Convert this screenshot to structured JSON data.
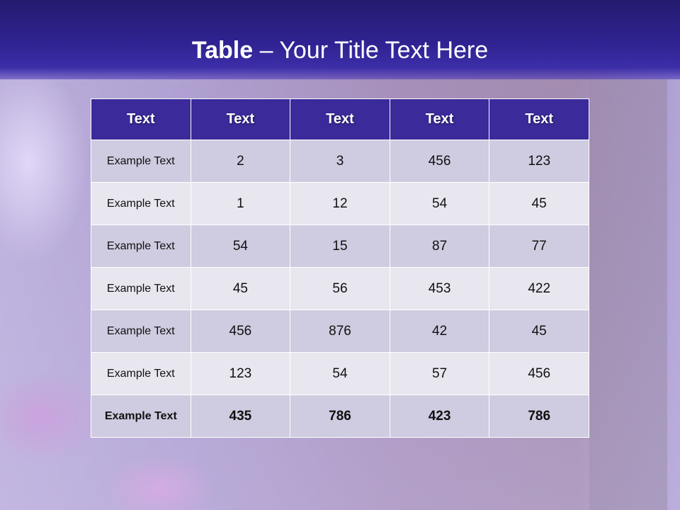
{
  "title": {
    "bold": "Table",
    "rest": " – Your Title Text Here"
  },
  "table": {
    "headers": [
      "Text",
      "Text",
      "Text",
      "Text",
      "Text"
    ],
    "rows": [
      [
        "Example Text",
        "2",
        "3",
        "456",
        "123"
      ],
      [
        "Example Text",
        "1",
        "12",
        "54",
        "45"
      ],
      [
        "Example Text",
        "54",
        "15",
        "87",
        "77"
      ],
      [
        "Example Text",
        "45",
        "56",
        "453",
        "422"
      ],
      [
        "Example Text",
        "456",
        "876",
        "42",
        "45"
      ],
      [
        "Example Text",
        "123",
        "54",
        "57",
        "456"
      ],
      [
        "Example Text",
        "435",
        "786",
        "423",
        "786"
      ]
    ]
  },
  "colors": {
    "header": "#3a2a9a",
    "row_dark": "#cfcbe0",
    "row_light": "#e8e7f0",
    "title_band": "#2f2392"
  }
}
